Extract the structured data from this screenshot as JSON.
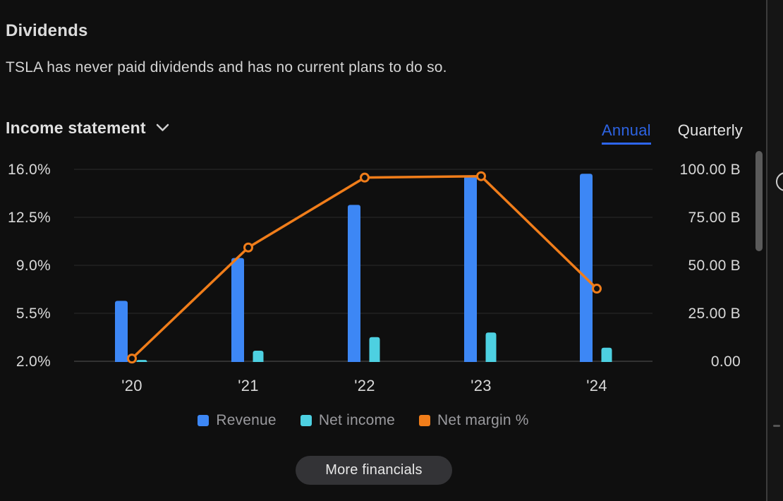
{
  "dividends": {
    "title": "Dividends",
    "description": "TSLA has never paid dividends and has no current plans to do so."
  },
  "financials": {
    "selector_label": "Income statement",
    "tabs": [
      {
        "label": "Annual",
        "active": true
      },
      {
        "label": "Quarterly",
        "active": false
      }
    ]
  },
  "chart_data": {
    "type": "combo",
    "title": "Income statement",
    "categories": [
      "'20",
      "'21",
      "'22",
      "'23",
      "'24"
    ],
    "series": [
      {
        "name": "Revenue",
        "type": "bar",
        "axis": "right",
        "unit": "B",
        "color": "#3d87f5",
        "values": [
          31.5,
          53.8,
          81.5,
          96.8,
          97.7
        ]
      },
      {
        "name": "Net income",
        "type": "bar",
        "axis": "right",
        "unit": "B",
        "color": "#4dd0e1",
        "values": [
          0.7,
          5.5,
          12.6,
          15.0,
          7.1
        ]
      },
      {
        "name": "Net margin %",
        "type": "line",
        "axis": "left",
        "unit": "%",
        "color": "#f07d1a",
        "values": [
          2.2,
          10.3,
          15.4,
          15.5,
          7.3
        ]
      }
    ],
    "left_axis": {
      "min": 2,
      "max": 16,
      "ticks": [
        "16.0%",
        "12.5%",
        "9.0%",
        "5.5%",
        "2.0%"
      ]
    },
    "right_axis": {
      "min": 0,
      "max": 100,
      "ticks": [
        "100.00 B",
        "75.00 B",
        "50.00 B",
        "25.00 B",
        "0.00"
      ]
    },
    "grid": true,
    "legend_position": "bottom"
  },
  "buttons": {
    "more_financials": "More financials"
  },
  "colors": {
    "accent_blue": "#2d63e2",
    "revenue_bar": "#3d87f5",
    "net_income_bar": "#4dd0e1",
    "net_margin_line": "#f07d1a",
    "background": "#0f0f0f"
  }
}
